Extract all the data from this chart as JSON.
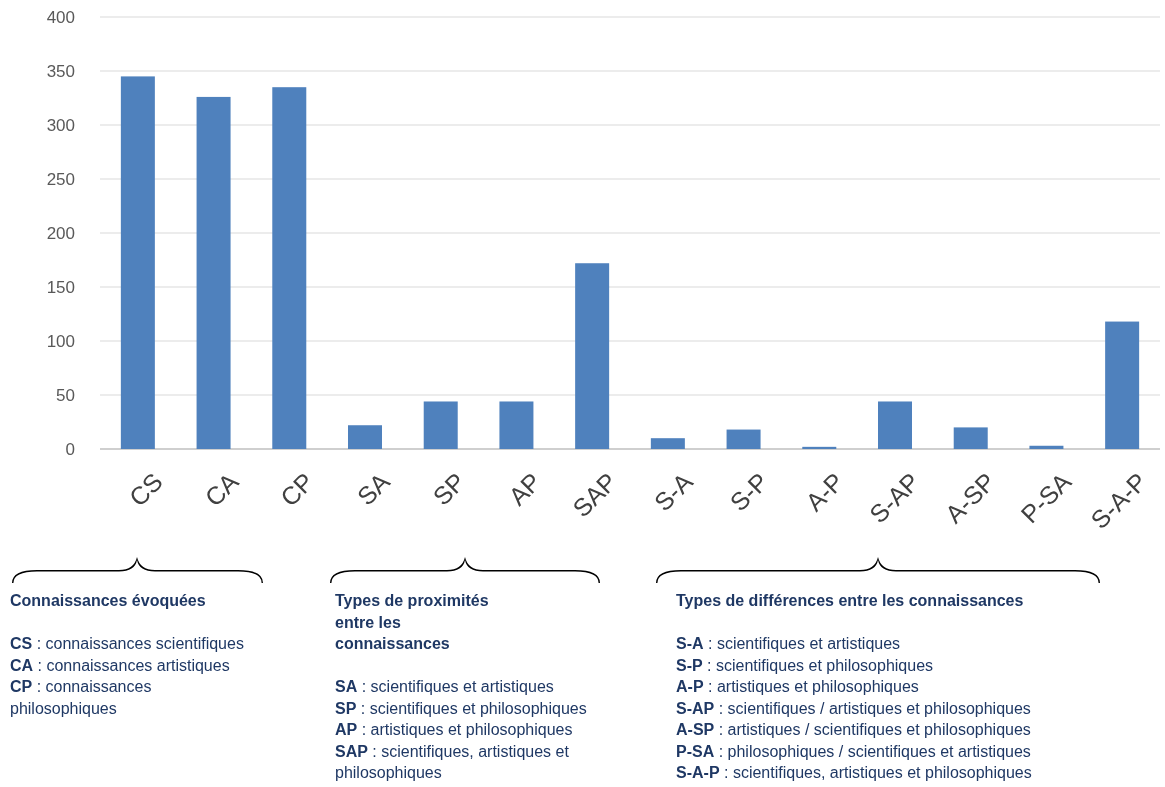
{
  "chart_data": {
    "type": "bar",
    "categories": [
      "CS",
      "CA",
      "CP",
      "SA",
      "SP",
      "AP",
      "SAP",
      "S-A",
      "S-P",
      "A-P",
      "S-AP",
      "A-SP",
      "P-SA",
      "S-A-P"
    ],
    "values": [
      345,
      326,
      335,
      22,
      44,
      44,
      172,
      10,
      18,
      2,
      44,
      20,
      3,
      118
    ],
    "color": "#4f81bd",
    "ylim": [
      0,
      400
    ],
    "yticks": [
      0,
      50,
      100,
      150,
      200,
      250,
      300,
      350,
      400
    ],
    "grid": "y",
    "annotations": [
      "Connaissances évoquées",
      "CS : connaissances scientifiques",
      "CA : connaissances artistiques",
      "CP : connaissances philosophiques",
      "Types de proximités entre les connaissances",
      "SA : scientifiques et artistiques",
      "SP : scientifiques et philosophiques",
      "AP : artistiques et philosophiques",
      "SAP : scientifiques, artistiques et philosophiques",
      "Types de différences entre les connaissances",
      "S-A : scientifiques et artistiques",
      "S-P : scientifiques et philosophiques",
      "A-P : artistiques et philosophiques",
      "S-AP : scientifiques / artistiques et philosophiques",
      "A-SP : artistiques / scientifiques et philosophiques",
      "P-SA : philosophiques / scientifiques et artistiques",
      "S-A-P : scientifiques, artistiques et philosophiques"
    ]
  }
}
